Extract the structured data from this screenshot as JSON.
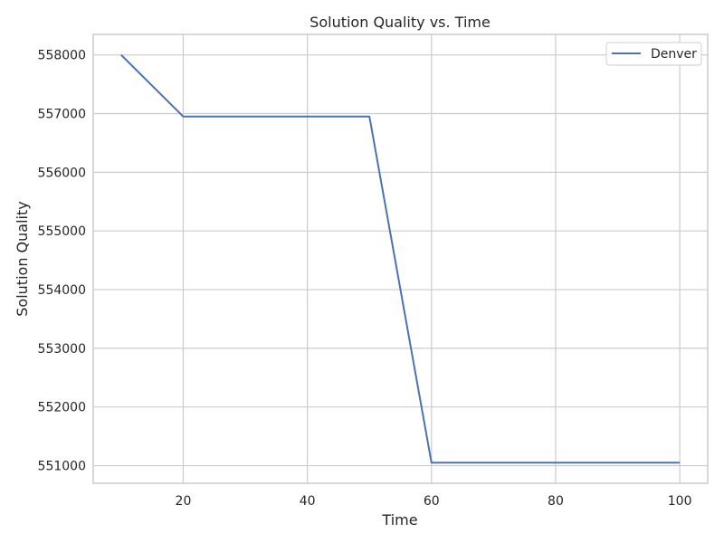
{
  "chart_data": {
    "type": "line",
    "title": "Solution Quality vs. Time",
    "xlabel": "Time",
    "ylabel": "Solution Quality",
    "xlim": [
      5.5,
      104.5
    ],
    "ylim": [
      550700,
      558350
    ],
    "xticks": [
      20,
      40,
      60,
      80,
      100
    ],
    "yticks": [
      551000,
      552000,
      553000,
      554000,
      555000,
      556000,
      557000,
      558000
    ],
    "grid": true,
    "legend_position": "top-right",
    "series": [
      {
        "name": "Denver",
        "color": "#4c72b0",
        "points": [
          [
            10,
            558000
          ],
          [
            20,
            556950
          ],
          [
            30,
            556950
          ],
          [
            40,
            556950
          ],
          [
            50,
            556950
          ],
          [
            60,
            551050
          ],
          [
            70,
            551050
          ],
          [
            80,
            551050
          ],
          [
            90,
            551050
          ],
          [
            100,
            551050
          ]
        ]
      }
    ]
  }
}
